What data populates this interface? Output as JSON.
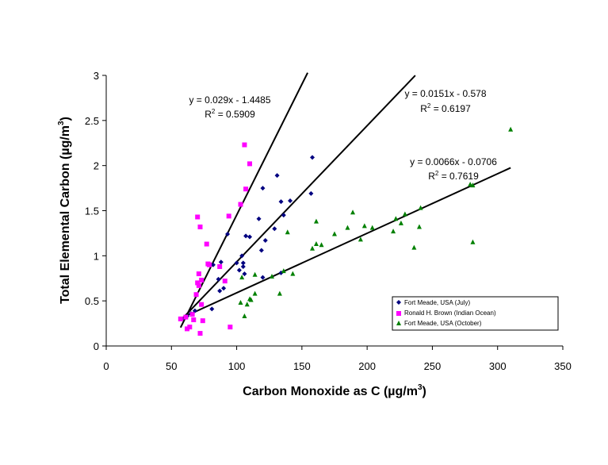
{
  "chart_data": {
    "type": "scatter",
    "xlabel": "Carbon Monoxide as C (µg/m3)",
    "xlabel_parts": [
      "Carbon Monoxide as C (µg/m",
      "3",
      ")"
    ],
    "ylabel": "Total Elemental Carbon (µg/m3)",
    "ylabel_parts": [
      "Total Elemental Carbon (µg/m",
      "3",
      ")"
    ],
    "xlim": [
      0,
      350
    ],
    "ylim": [
      0,
      3
    ],
    "xticks": [
      0,
      50,
      100,
      150,
      200,
      250,
      300,
      350
    ],
    "yticks": [
      0,
      0.5,
      1,
      1.5,
      2,
      2.5,
      3
    ],
    "xtick_labels": [
      "0",
      "50",
      "100",
      "150",
      "200",
      "250",
      "300",
      "350"
    ],
    "ytick_labels": [
      "0",
      "0.5",
      "1",
      "1.5",
      "2",
      "2.5",
      "3"
    ],
    "grid": false,
    "legend_position": "bottom-right",
    "series": [
      {
        "name": "Fort Meade, USA (July)",
        "marker": "diamond",
        "color": "#000080",
        "points": [
          [
            58,
            0.3
          ],
          [
            62,
            0.33
          ],
          [
            65,
            0.36
          ],
          [
            68,
            0.39
          ],
          [
            81,
            0.41
          ],
          [
            82,
            0.9
          ],
          [
            86,
            0.74
          ],
          [
            87,
            0.61
          ],
          [
            88,
            0.93
          ],
          [
            90,
            0.64
          ],
          [
            93,
            1.24
          ],
          [
            100,
            0.92
          ],
          [
            102,
            0.84
          ],
          [
            104,
            1.0
          ],
          [
            105,
            0.88
          ],
          [
            105,
            0.92
          ],
          [
            106,
            0.8
          ],
          [
            107,
            1.22
          ],
          [
            110,
            1.21
          ],
          [
            117,
            1.41
          ],
          [
            119,
            1.06
          ],
          [
            120,
            0.76
          ],
          [
            120,
            1.75
          ],
          [
            122,
            1.17
          ],
          [
            129,
            1.3
          ],
          [
            131,
            1.89
          ],
          [
            134,
            0.81
          ],
          [
            134,
            1.6
          ],
          [
            136,
            1.45
          ],
          [
            141,
            1.61
          ],
          [
            157,
            1.69
          ],
          [
            158,
            2.09
          ]
        ]
      },
      {
        "name": "Ronald H. Brown (Indian Ocean)",
        "marker": "square",
        "color": "#FF00FF",
        "points": [
          [
            57,
            0.3
          ],
          [
            61,
            0.32
          ],
          [
            62,
            0.19
          ],
          [
            64,
            0.21
          ],
          [
            66,
            0.35
          ],
          [
            67,
            0.29
          ],
          [
            69,
            0.57
          ],
          [
            70,
            0.7
          ],
          [
            70,
            1.43
          ],
          [
            71,
            0.8
          ],
          [
            71,
            0.67
          ],
          [
            72,
            1.32
          ],
          [
            72,
            0.14
          ],
          [
            73,
            0.73
          ],
          [
            73,
            0.46
          ],
          [
            74,
            0.28
          ],
          [
            77,
            1.13
          ],
          [
            78,
            0.91
          ],
          [
            79,
            0.9
          ],
          [
            87,
            0.88
          ],
          [
            91,
            0.72
          ],
          [
            94,
            1.44
          ],
          [
            95,
            0.21
          ],
          [
            103,
            1.57
          ],
          [
            106,
            2.23
          ],
          [
            107,
            1.74
          ],
          [
            110,
            2.02
          ]
        ]
      },
      {
        "name": "Fort Meade, USA (October)",
        "marker": "triangle",
        "color": "#008000",
        "points": [
          [
            103,
            0.48
          ],
          [
            104,
            0.76
          ],
          [
            106,
            0.33
          ],
          [
            108,
            0.46
          ],
          [
            110,
            0.52
          ],
          [
            111,
            0.51
          ],
          [
            114,
            0.58
          ],
          [
            114,
            0.79
          ],
          [
            127,
            0.77
          ],
          [
            133,
            0.58
          ],
          [
            136,
            0.83
          ],
          [
            139,
            1.26
          ],
          [
            143,
            0.8
          ],
          [
            158,
            1.08
          ],
          [
            161,
            1.38
          ],
          [
            161,
            1.13
          ],
          [
            165,
            1.12
          ],
          [
            175,
            1.24
          ],
          [
            185,
            1.31
          ],
          [
            189,
            1.48
          ],
          [
            195,
            1.18
          ],
          [
            198,
            1.33
          ],
          [
            204,
            1.31
          ],
          [
            220,
            1.27
          ],
          [
            222,
            1.41
          ],
          [
            226,
            1.36
          ],
          [
            229,
            1.46
          ],
          [
            236,
            1.09
          ],
          [
            240,
            1.32
          ],
          [
            241,
            1.53
          ],
          [
            279,
            1.79
          ],
          [
            281,
            1.15
          ],
          [
            281,
            1.78
          ],
          [
            310,
            2.4
          ]
        ]
      }
    ],
    "trendlines": [
      {
        "series": "Ronald H. Brown (Indian Ocean)",
        "slope": 0.029,
        "intercept": -1.4485,
        "x_range": [
          57,
          154.4
        ],
        "equation": "y = 0.029x - 1.4485",
        "r2_prefix": "R",
        "r2_sup": "2",
        "r2_suffix": " = 0.5909",
        "r2": 0.5909
      },
      {
        "series": "Fort Meade, USA (July)",
        "slope": 0.0151,
        "intercept": -0.578,
        "x_range": [
          57,
          236.9
        ],
        "equation": "y = 0.0151x - 0.578",
        "r2_prefix": "R",
        "r2_sup": "2",
        "r2_suffix": " = 0.6197",
        "r2": 0.6197
      },
      {
        "series": "Fort Meade, USA (October)",
        "slope": 0.0066,
        "intercept": -0.0706,
        "x_range": [
          57,
          310
        ],
        "equation": "y = 0.0066x - 0.0706",
        "r2_prefix": "R",
        "r2_sup": "2",
        "r2_suffix": " = 0.7619",
        "r2": 0.7619
      }
    ]
  }
}
